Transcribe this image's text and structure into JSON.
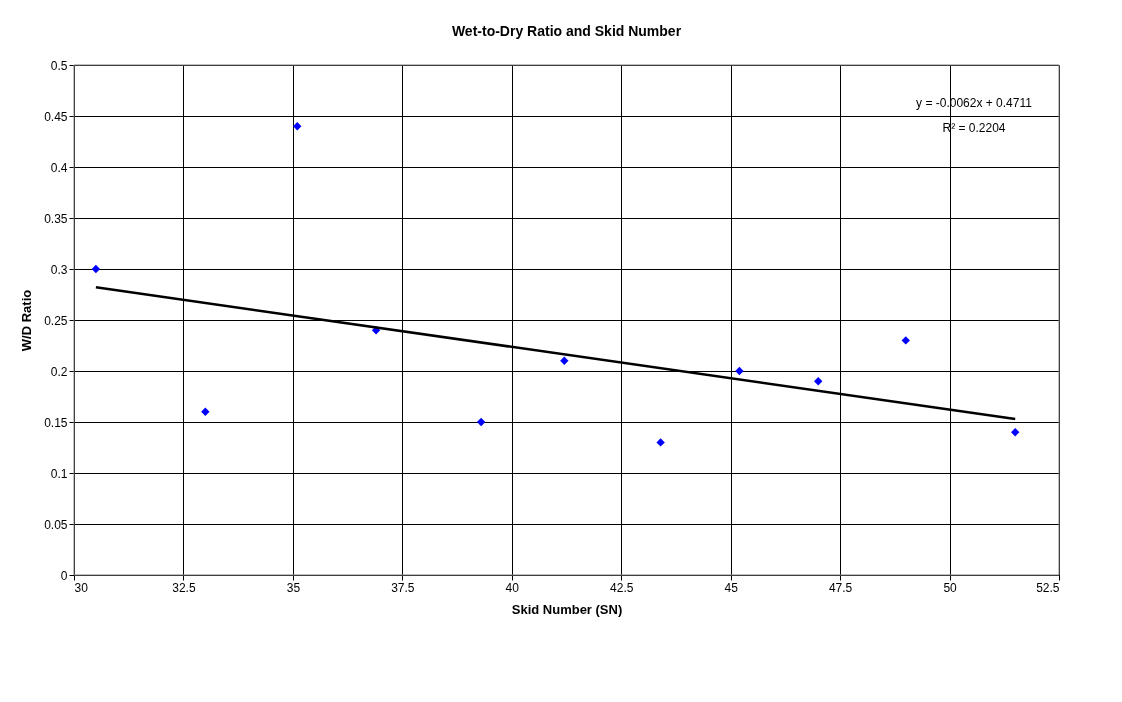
{
  "chart_data": {
    "type": "scatter",
    "title": "Wet-to-Dry Ratio and Skid Number",
    "xlabel": "Skid Number (SN)",
    "ylabel": "W/D Ratio",
    "series": [
      {
        "type": "scatter",
        "color": "#0000ff",
        "marker": "diamond",
        "x": [
          30.5,
          33.0,
          35.1,
          36.9,
          39.3,
          41.2,
          43.4,
          45.2,
          47.0,
          49.0,
          51.5
        ],
        "values": [
          0.3,
          0.16,
          0.44,
          0.24,
          0.15,
          0.21,
          0.13,
          0.2,
          0.19,
          0.23,
          0.14
        ]
      },
      {
        "type": "line",
        "color": "#000000",
        "line_style": "solid",
        "x": [
          30.5,
          51.5
        ],
        "values": [
          0.282,
          0.153
        ]
      }
    ],
    "annotations": [
      "y = -0.0062x + 0.4711",
      "R² = 0.2204"
    ],
    "xlim": [
      30,
      52.5
    ],
    "xticks": [
      30,
      32.5,
      35,
      37.5,
      40,
      42.5,
      45,
      47.5,
      50,
      52.5
    ],
    "ylim": [
      0,
      0.5
    ],
    "yticks": [
      0,
      0.05,
      0.1,
      0.15,
      0.2,
      0.25,
      0.3,
      0.35,
      0.4,
      0.45,
      0.5
    ],
    "grid": true
  }
}
